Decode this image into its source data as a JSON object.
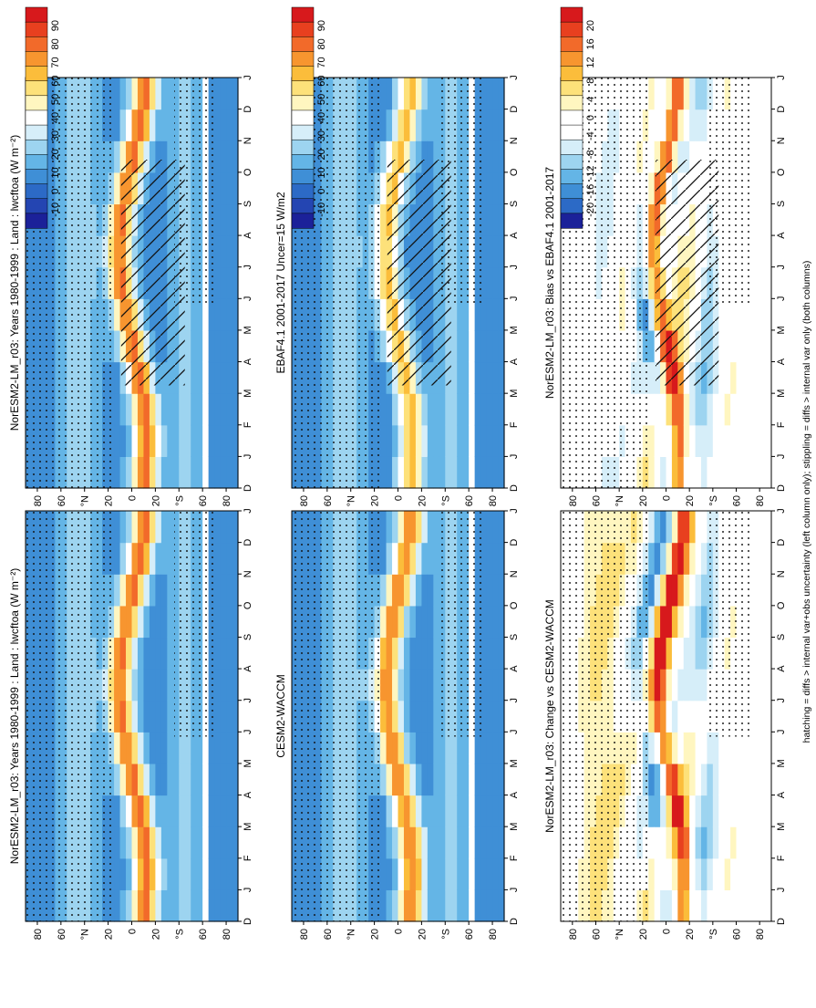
{
  "figure": {
    "footer": "hatching = diffs > internal var+obs uncertainty (left column only); stippling = diffs > internal var only (both columns)"
  },
  "scales": {
    "abs": {
      "labels": [
        "90",
        "80",
        "70",
        "60",
        "50",
        "40",
        "30",
        "20",
        "10",
        "0",
        "-10"
      ],
      "colors": [
        "#d7191c",
        "#e8401f",
        "#f26a2a",
        "#f7952f",
        "#fbbd3b",
        "#fde17a",
        "#fff6c0",
        "#ffffff",
        "#d6eef9",
        "#9dd4f0",
        "#64b5e6",
        "#3f8fd6",
        "#2c6ac6",
        "#2445b2",
        "#1b2199"
      ]
    },
    "diff": {
      "labels": [
        "20",
        "16",
        "12",
        "8",
        "4",
        "0",
        "-4",
        "-8",
        "-12",
        "-16",
        "-20"
      ],
      "colors": [
        "#d7191c",
        "#e8401f",
        "#f26a2a",
        "#f7952f",
        "#fbbd3b",
        "#fde17a",
        "#fff6c0",
        "#ffffff",
        "#ffffff",
        "#d6eef9",
        "#9dd4f0",
        "#64b5e6",
        "#3f8fd6",
        "#2c6ac6",
        "#1b2199"
      ]
    }
  },
  "axes": {
    "months": [
      "D",
      "J",
      "F",
      "M",
      "A",
      "M",
      "J",
      "J",
      "A",
      "S",
      "O",
      "N",
      "D",
      "J"
    ],
    "lat_ticks": [
      "80",
      "60",
      "°N",
      "20",
      "0",
      "20",
      "°S",
      "60",
      "80"
    ]
  },
  "chart_data": [
    {
      "type": "heatmap",
      "title": "NorESM2-LM_r03: Years 1980-1999 : Land : lwcftoa (W m⁻²)",
      "variable": "lwcftoa",
      "units": "W m-2",
      "x": "month (Dec to Jan, 14 steps)",
      "y": "latitude (90N to 90S)",
      "zlim": [
        -10,
        90
      ],
      "scale": "abs",
      "itcz_peak": 65,
      "hatching": true,
      "stippling": true
    },
    {
      "type": "heatmap",
      "title": "NorESM2-LM_r03: Years 1980-1999 : Land : lwcftoa (W m⁻²)",
      "variable": "lwcftoa",
      "units": "W m-2",
      "zlim": [
        -10,
        90
      ],
      "scale": "abs",
      "itcz_peak": 65,
      "hatching": false,
      "stippling": true
    },
    {
      "type": "heatmap",
      "title": "EBAF4.1 2001-2017 Uncer=15 W/m2",
      "variable": "lwcftoa",
      "units": "W m-2",
      "zlim": [
        -10,
        90
      ],
      "scale": "abs",
      "itcz_peak": 50,
      "hatching": true,
      "stippling": true
    },
    {
      "type": "heatmap",
      "title": "CESM2-WACCM",
      "variable": "lwcftoa",
      "units": "W m-2",
      "zlim": [
        -10,
        90
      ],
      "scale": "abs",
      "itcz_peak": 62,
      "hatching": false,
      "stippling": true
    },
    {
      "type": "heatmap",
      "title": "NorESM2-LM_r03: Bias vs EBAF4.1 2001-2017",
      "variable": "lwcftoa difference",
      "units": "W m-2",
      "zlim": [
        -20,
        20
      ],
      "scale": "diff",
      "hatching": true,
      "stippling": true
    },
    {
      "type": "heatmap",
      "title": "NorESM2-LM_r03: Change vs CESM2-WACCM",
      "variable": "lwcftoa difference",
      "units": "W m-2",
      "zlim": [
        -20,
        20
      ],
      "scale": "diff",
      "hatching": false,
      "stippling": true
    }
  ]
}
